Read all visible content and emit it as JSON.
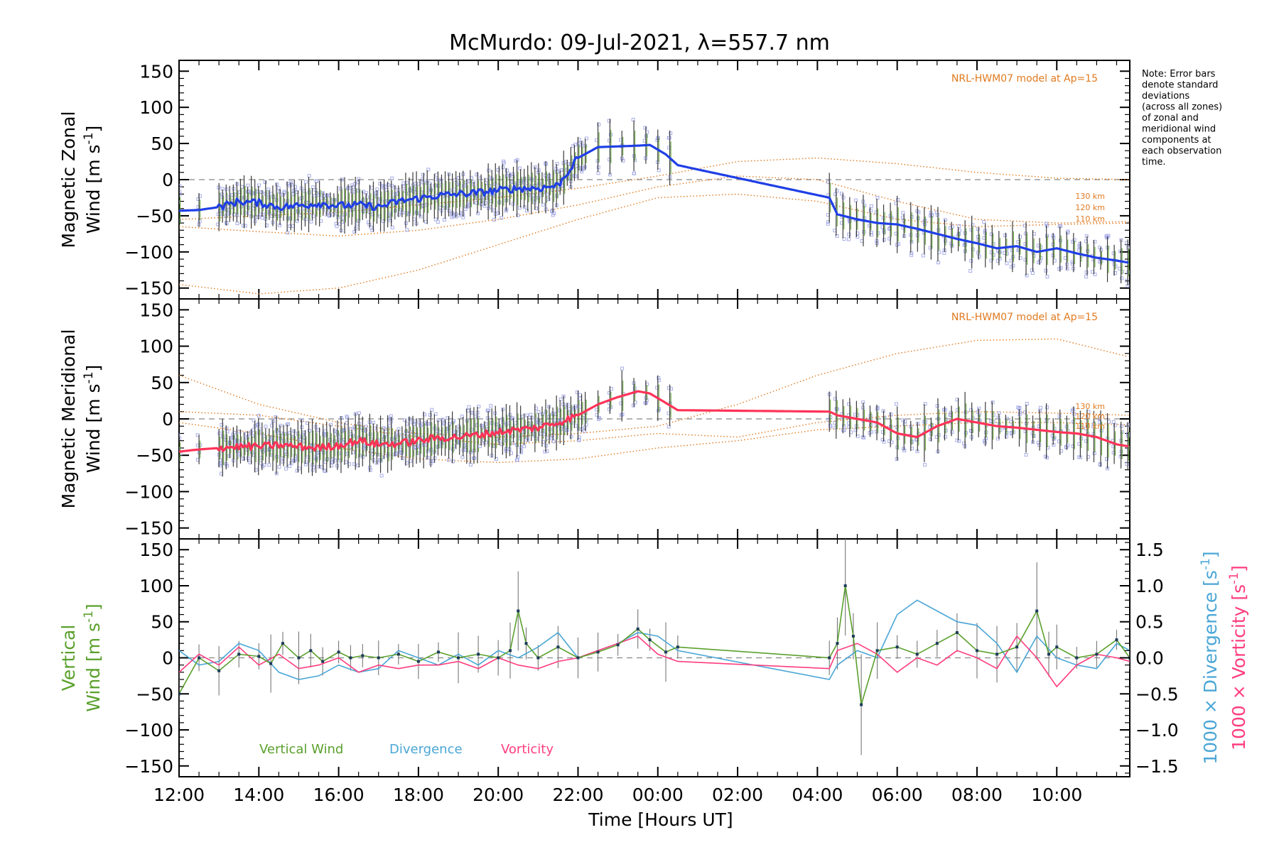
{
  "colors": {
    "zonal": "#1f3fe6",
    "meridional": "#ff3358",
    "vertical": "#5aa02c",
    "divergence": "#4aa6d6",
    "vorticity": "#ff3d7f",
    "model": "#e07a20",
    "scatter": "#a9aee6",
    "errorbar": "#3a3a3a"
  },
  "chart_data": [
    {
      "type": "line",
      "panel": "zonal",
      "title": "McMurdo: 09-Jul-2021, λ=557.7 nm",
      "ylabel_line1": "Magnetic Zonal",
      "ylabel_line2": "Wind [m s",
      "ylabel_sup": "-1",
      "ylabel_end": "]",
      "ylim": [
        -165,
        165
      ],
      "yticks": [
        150,
        100,
        50,
        0,
        -50,
        -100,
        -150
      ],
      "xlim": [
        12,
        35.83
      ],
      "model_label": "NRL-HWM07 model at Ap=15",
      "model_altitude_labels": [
        "130 km",
        "120 km",
        "110 km"
      ],
      "series": [
        {
          "name": "Zonal wind",
          "x": [
            12.0,
            12.5,
            13.0,
            13.5,
            14.0,
            14.5,
            15.0,
            15.5,
            16.0,
            16.5,
            17.0,
            17.5,
            18.0,
            18.5,
            19.0,
            19.5,
            20.0,
            20.5,
            21.0,
            21.5,
            22.0,
            22.5,
            23.0,
            23.5,
            23.8,
            24.2,
            24.5,
            28.3,
            28.5,
            29.0,
            29.5,
            30.0,
            30.5,
            31.0,
            31.5,
            32.0,
            32.5,
            33.0,
            33.5,
            34.0,
            34.5,
            35.0,
            35.5,
            35.83
          ],
          "y": [
            -43,
            -42,
            -38,
            -30,
            -32,
            -38,
            -36,
            -33,
            -36,
            -35,
            -38,
            -30,
            -26,
            -22,
            -20,
            -18,
            -15,
            -12,
            -12,
            -8,
            30,
            45,
            46,
            47,
            48,
            35,
            20,
            -25,
            -48,
            -55,
            -60,
            -62,
            -68,
            -75,
            -82,
            -88,
            -95,
            -92,
            -100,
            -95,
            -102,
            -108,
            -112,
            -115
          ]
        },
        {
          "name": "NRL-HWM07 130 km",
          "x": [
            12,
            14,
            16,
            18,
            20,
            22,
            24,
            26,
            28,
            30,
            32,
            34,
            35.83
          ],
          "y": [
            -55,
            -50,
            -45,
            -35,
            -25,
            -12,
            5,
            25,
            30,
            22,
            10,
            2,
            0
          ]
        },
        {
          "name": "NRL-HWM07 120 km",
          "x": [
            12,
            14,
            16,
            18,
            20,
            22,
            24,
            26,
            28,
            30,
            32,
            34,
            35.83
          ],
          "y": [
            -65,
            -72,
            -78,
            -70,
            -55,
            -35,
            -10,
            5,
            0,
            -30,
            -55,
            -60,
            -58
          ]
        },
        {
          "name": "NRL-HWM07 110 km",
          "x": [
            12,
            14,
            16,
            18,
            20,
            22,
            24,
            26,
            28,
            30,
            32,
            34,
            35.83
          ],
          "y": [
            -145,
            -158,
            -150,
            -125,
            -90,
            -55,
            -25,
            -20,
            -30,
            -55,
            -65,
            -62,
            -60
          ]
        }
      ]
    },
    {
      "type": "line",
      "panel": "meridional",
      "ylabel_line1": "Magnetic Meridional",
      "ylabel_line2": "Wind [m s",
      "ylabel_sup": "-1",
      "ylabel_end": "]",
      "ylim": [
        -165,
        165
      ],
      "yticks": [
        150,
        100,
        50,
        0,
        -50,
        -100,
        -150
      ],
      "xlim": [
        12,
        35.83
      ],
      "model_label": "NRL-HWM07 model at Ap=15",
      "model_altitude_labels": [
        "130 km",
        "120 km",
        "110 km"
      ],
      "series": [
        {
          "name": "Meridional wind",
          "x": [
            12.0,
            12.5,
            13.0,
            13.5,
            14.0,
            14.5,
            15.0,
            15.5,
            16.0,
            16.5,
            17.0,
            17.5,
            18.0,
            18.5,
            19.0,
            19.5,
            20.0,
            20.5,
            21.0,
            21.5,
            22.0,
            22.5,
            23.0,
            23.5,
            23.8,
            24.2,
            24.5,
            28.3,
            28.5,
            29.0,
            29.5,
            30.0,
            30.5,
            31.0,
            31.5,
            32.0,
            32.5,
            33.0,
            33.5,
            34.0,
            34.5,
            35.0,
            35.5,
            35.83
          ],
          "y": [
            -45,
            -42,
            -40,
            -38,
            -38,
            -36,
            -38,
            -40,
            -36,
            -30,
            -35,
            -34,
            -30,
            -26,
            -25,
            -22,
            -18,
            -15,
            -12,
            -5,
            5,
            20,
            30,
            38,
            35,
            22,
            12,
            10,
            5,
            0,
            -5,
            -20,
            -25,
            -10,
            0,
            -5,
            -10,
            -12,
            -15,
            -18,
            -20,
            -25,
            -35,
            -38
          ]
        },
        {
          "name": "NRL-HWM07 130 km",
          "x": [
            12,
            14,
            16,
            18,
            20,
            22,
            24,
            26,
            28,
            30,
            32,
            34,
            35.83
          ],
          "y": [
            60,
            20,
            -5,
            -20,
            -25,
            -20,
            -10,
            20,
            60,
            90,
            108,
            110,
            85
          ]
        },
        {
          "name": "NRL-HWM07 120 km",
          "x": [
            12,
            14,
            16,
            18,
            20,
            22,
            24,
            26,
            28,
            30,
            32,
            34,
            35.83
          ],
          "y": [
            10,
            5,
            -10,
            -25,
            -35,
            -30,
            -20,
            -25,
            -5,
            5,
            10,
            8,
            5
          ]
        },
        {
          "name": "NRL-HWM07 110 km",
          "x": [
            12,
            14,
            16,
            18,
            20,
            22,
            24,
            26,
            28,
            30,
            32,
            34,
            35.83
          ],
          "y": [
            -5,
            -20,
            -40,
            -55,
            -60,
            -55,
            -40,
            -30,
            -15,
            -10,
            -5,
            -5,
            -8
          ]
        }
      ]
    },
    {
      "type": "line",
      "panel": "vertical",
      "ylabel_line1": "Vertical",
      "ylabel_line2": "Wind [m s",
      "ylabel_sup": "-1",
      "ylabel_end": "]",
      "ylim": [
        -165,
        165
      ],
      "yticks": [
        150,
        100,
        50,
        0,
        -50,
        -100,
        -150
      ],
      "y2lim": [
        -1.65,
        1.65
      ],
      "y2ticks": [
        1.5,
        1.0,
        0.5,
        0.0,
        -0.5,
        -1.0,
        -1.5
      ],
      "y2label_div": "1000 × Divergence [s",
      "y2label_vor": "1000 × Vorticity [s",
      "y2label_sup": "-1",
      "y2label_end": "]",
      "xlabel": "Time [Hours UT]",
      "xlim": [
        12,
        35.83
      ],
      "xtick_labels": [
        "12:00",
        "14:00",
        "16:00",
        "18:00",
        "20:00",
        "22:00",
        "00:00",
        "02:00",
        "04:00",
        "06:00",
        "08:00",
        "10:00"
      ],
      "legend": [
        "Vertical Wind",
        "Divergence",
        "Vorticity"
      ],
      "series": [
        {
          "name": "Vertical Wind",
          "x": [
            12.0,
            12.5,
            13.0,
            13.5,
            14.0,
            14.3,
            14.6,
            15.0,
            15.3,
            15.6,
            16.0,
            16.3,
            16.6,
            17.0,
            17.5,
            18.0,
            18.5,
            19.0,
            19.5,
            20.0,
            20.3,
            20.5,
            20.7,
            21.0,
            21.5,
            22.0,
            22.5,
            23.0,
            23.5,
            23.8,
            24.2,
            24.5,
            28.3,
            28.5,
            28.7,
            28.9,
            29.1,
            29.5,
            30.0,
            30.5,
            31.0,
            31.5,
            32.0,
            32.5,
            33.0,
            33.5,
            33.8,
            34.0,
            34.5,
            35.0,
            35.5,
            35.83
          ],
          "y": [
            -50,
            0,
            -18,
            5,
            2,
            -8,
            20,
            0,
            10,
            -5,
            8,
            0,
            3,
            0,
            5,
            -5,
            8,
            0,
            5,
            0,
            10,
            65,
            20,
            0,
            15,
            0,
            8,
            18,
            40,
            25,
            8,
            15,
            0,
            20,
            100,
            30,
            -65,
            10,
            15,
            5,
            20,
            35,
            10,
            5,
            15,
            65,
            5,
            15,
            0,
            5,
            25,
            0
          ]
        },
        {
          "name": "Divergence",
          "x": [
            12.0,
            12.5,
            13.0,
            13.5,
            14.0,
            14.5,
            15.0,
            15.5,
            16.0,
            16.5,
            17.0,
            17.5,
            18.0,
            18.5,
            19.0,
            19.5,
            20.0,
            20.5,
            21.0,
            21.5,
            22.0,
            22.5,
            23.0,
            23.5,
            24.0,
            24.5,
            28.3,
            28.5,
            29.0,
            29.5,
            30.0,
            30.5,
            31.0,
            31.5,
            32.0,
            32.5,
            33.0,
            33.5,
            34.0,
            34.5,
            35.0,
            35.5,
            35.83
          ],
          "y": [
            0.1,
            -0.1,
            -0.05,
            0.2,
            0.1,
            -0.2,
            -0.3,
            -0.25,
            -0.1,
            -0.2,
            -0.15,
            0.1,
            0.0,
            -0.1,
            0.05,
            -0.1,
            0.1,
            0.0,
            0.15,
            0.35,
            0.0,
            0.1,
            0.2,
            0.35,
            0.3,
            0.1,
            -0.3,
            -0.1,
            0.1,
            0.0,
            0.6,
            0.8,
            0.65,
            0.5,
            0.45,
            0.2,
            -0.2,
            0.3,
            0.0,
            -0.1,
            -0.15,
            0.2,
            0.1
          ]
        },
        {
          "name": "Vorticity",
          "x": [
            12.0,
            12.5,
            13.0,
            13.5,
            14.0,
            14.5,
            15.0,
            15.5,
            16.0,
            16.5,
            17.0,
            17.5,
            18.0,
            18.5,
            19.0,
            19.5,
            20.0,
            20.5,
            21.0,
            21.5,
            22.0,
            22.5,
            23.0,
            23.5,
            24.0,
            24.5,
            28.3,
            28.5,
            29.0,
            29.5,
            30.0,
            30.5,
            31.0,
            31.5,
            32.0,
            32.5,
            33.0,
            33.5,
            34.0,
            34.5,
            35.0,
            35.5,
            35.83
          ],
          "y": [
            -0.2,
            0.05,
            -0.1,
            0.15,
            -0.1,
            0.05,
            -0.15,
            -0.1,
            0.0,
            -0.2,
            -0.1,
            -0.15,
            -0.1,
            -0.1,
            -0.05,
            -0.15,
            0.0,
            -0.1,
            -0.15,
            -0.05,
            0.0,
            0.1,
            0.2,
            0.3,
            0.05,
            -0.05,
            -0.15,
            0.1,
            0.2,
            0.05,
            -0.2,
            0.0,
            -0.1,
            0.1,
            0.0,
            -0.15,
            0.3,
            0.0,
            -0.4,
            -0.1,
            0.05,
            0.0,
            -0.05
          ]
        }
      ]
    }
  ],
  "note_lines": [
    "Note: Error bars",
    "denote standard",
    "deviations",
    "(across all zones)",
    "of zonal and",
    "meridional wind",
    "components at",
    "each observation",
    "time."
  ]
}
